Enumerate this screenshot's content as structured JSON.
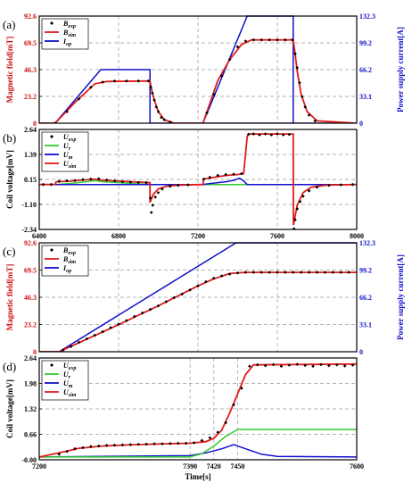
{
  "colors": {
    "exp": "#000000",
    "sim": "#e11a1a",
    "op": "#1010cc",
    "r": "#33cc33",
    "m": "#1010cc",
    "grid": "#999999"
  },
  "chart_data": [
    {
      "id": "a",
      "type": "line",
      "panel_label": "(a)",
      "ylabel": "Magnetic field[mT]",
      "ylabel_right": "Power supply current[A]",
      "xlim": [
        6400,
        8000
      ],
      "ylim": [
        0,
        92.6
      ],
      "ylim_right": [
        0,
        132.3
      ],
      "yticks": [
        "0",
        "23.2",
        "46.3",
        "69.5",
        "92.6"
      ],
      "yticks_right": [
        "0",
        "33.1",
        "66.2",
        "99.2",
        "132.3"
      ],
      "grid": true,
      "legend_position": "top-left",
      "legend": [
        {
          "main": "B",
          "sub": "exp",
          "style": "dots",
          "color": "#000000"
        },
        {
          "main": "B",
          "sub": "sim",
          "style": "line",
          "color": "#e11a1a"
        },
        {
          "main": "I",
          "sub": "op",
          "style": "line",
          "color": "#1010cc"
        }
      ],
      "series": [
        {
          "key": "op",
          "axis": "right",
          "x": [
            6400,
            6480,
            6710,
            6958,
            6958,
            8000
          ],
          "y": [
            0,
            0,
            66.2,
            66.2,
            0,
            0
          ]
        },
        {
          "key": "op",
          "axis": "right",
          "x": [
            7225,
            7225,
            7448,
            7680,
            7680
          ],
          "y": [
            0,
            0,
            132.3,
            132.3,
            0
          ]
        },
        {
          "key": "sim",
          "x": [
            6400,
            6480,
            6580,
            6680,
            6740,
            6958,
            6965,
            6980,
            7000,
            7030,
            7080,
            7225,
            7260,
            7300,
            7360,
            7420,
            7470,
            7680,
            7688,
            7700,
            7720,
            7750,
            7800,
            8000
          ],
          "y": [
            0,
            0,
            18,
            34,
            36,
            36.5,
            30,
            20,
            10,
            3,
            0,
            0,
            17,
            37,
            55,
            68,
            72,
            72,
            62,
            45,
            25,
            10,
            2,
            0
          ]
        },
        {
          "key": "exp",
          "type": "scatter",
          "x": [
            6480,
            6540,
            6600,
            6660,
            6720,
            6780,
            6840,
            6900,
            6950,
            6962,
            6970,
            6980,
            6990,
            7000,
            7015,
            7030,
            7060,
            7245,
            7280,
            7320,
            7360,
            7400,
            7440,
            7480,
            7520,
            7560,
            7600,
            7640,
            7676,
            7690,
            7700,
            7712,
            7725,
            7740,
            7760,
            7790
          ],
          "y": [
            0,
            10,
            21,
            31,
            35.5,
            36.5,
            36.5,
            36.5,
            36.5,
            31,
            26,
            20,
            14,
            10,
            5,
            3,
            1,
            9,
            25,
            41,
            55,
            66,
            71,
            72,
            72,
            72,
            72,
            72,
            72,
            60,
            48,
            35,
            23,
            14,
            7,
            2
          ]
        }
      ]
    },
    {
      "id": "b",
      "type": "line",
      "panel_label": "(b)",
      "ylabel": "Coil voltage[mV]",
      "xlim": [
        6400,
        8000
      ],
      "ylim": [
        -2.34,
        3.2
      ],
      "yticks": [
        "-2.34",
        "-1.10",
        "0.15",
        "1.39",
        "2.64"
      ],
      "xticks": [
        "6400",
        "6800",
        "7200",
        "7600",
        "8000"
      ],
      "grid": true,
      "legend_position": "top-left",
      "legend": [
        {
          "main": "U",
          "sub": "exp",
          "style": "dots",
          "color": "#000000"
        },
        {
          "main": "U",
          "sub": "r",
          "style": "line",
          "color": "#33cc33"
        },
        {
          "main": "U",
          "sub": "m",
          "style": "line",
          "color": "#1010cc"
        },
        {
          "main": "U",
          "sub": "sim",
          "style": "line",
          "color": "#e11a1a"
        }
      ],
      "series": [
        {
          "key": "r",
          "x": [
            6400,
            6480,
            6550,
            6620,
            6680,
            6720,
            6958,
            6958,
            7225,
            7225,
            7300,
            7370,
            7420,
            7448,
            7680,
            7680,
            8000
          ],
          "y": [
            0.15,
            0.15,
            0.2,
            0.28,
            0.36,
            0.3,
            0.15,
            0.15,
            0.15,
            0.15,
            0.15,
            0.15,
            0.15,
            0.15,
            0.15,
            0.15,
            0.15
          ]
        },
        {
          "key": "m",
          "x": [
            6400,
            7225,
            7260,
            7300,
            7340,
            7380,
            7410,
            7430,
            7448,
            8000
          ],
          "y": [
            0.15,
            0.15,
            0.2,
            0.25,
            0.3,
            0.38,
            0.5,
            0.35,
            0.15,
            0.15
          ]
        },
        {
          "key": "sim",
          "x": [
            6400,
            6480,
            6485,
            6550,
            6620,
            6680,
            6720,
            6958,
            6958,
            6975,
            7000,
            7040,
            7100,
            7225,
            7228,
            7280,
            7340,
            7400,
            7430,
            7448,
            7455,
            7680,
            7681,
            7700,
            7730,
            7770,
            7850,
            8000
          ],
          "y": [
            0.15,
            0.15,
            0.3,
            0.33,
            0.4,
            0.45,
            0.38,
            0.25,
            -0.85,
            -0.4,
            -0.1,
            0.05,
            0.12,
            0.15,
            0.45,
            0.55,
            0.65,
            0.7,
            0.75,
            2.8,
            2.95,
            2.95,
            -2.1,
            -1.0,
            -0.3,
            0.0,
            0.12,
            0.15
          ]
        },
        {
          "key": "exp",
          "type": "scatter",
          "x": [
            6420,
            6460,
            6500,
            6540,
            6580,
            6620,
            6660,
            6700,
            6740,
            6780,
            6820,
            6860,
            6900,
            6940,
            6960,
            6965,
            6972,
            6985,
            7000,
            7020,
            7060,
            7100,
            7150,
            7230,
            7260,
            7300,
            7340,
            7380,
            7420,
            7455,
            7480,
            7510,
            7540,
            7570,
            7600,
            7630,
            7660,
            7684,
            7690,
            7700,
            7715,
            7730,
            7760,
            7800,
            7860,
            7920,
            7980
          ],
          "y": [
            0.15,
            0.15,
            0.33,
            0.35,
            0.37,
            0.42,
            0.45,
            0.47,
            0.4,
            0.35,
            0.3,
            0.28,
            0.26,
            0.25,
            -0.6,
            -1.4,
            -1.0,
            -0.55,
            -0.3,
            -0.1,
            0.05,
            0.1,
            0.13,
            0.45,
            0.55,
            0.65,
            0.7,
            0.72,
            0.75,
            2.93,
            2.95,
            2.9,
            2.95,
            2.9,
            2.95,
            2.9,
            2.92,
            -2.3,
            -1.8,
            -1.2,
            -0.8,
            -0.5,
            -0.2,
            0.0,
            0.1,
            0.13,
            0.15
          ]
        }
      ]
    },
    {
      "id": "c",
      "type": "line",
      "panel_label": "(c)",
      "ylabel": "Magnetic field[mT]",
      "ylabel_right": "Power supply current[A]",
      "xlim": [
        7200,
        7600
      ],
      "ylim": [
        0,
        92.6
      ],
      "ylim_right": [
        0,
        132.3
      ],
      "yticks": [
        "0",
        "23.2",
        "46.3",
        "69.5",
        "92.6"
      ],
      "yticks_right": [
        "0",
        "33.1",
        "66.2",
        "99.2",
        "132.3"
      ],
      "grid": true,
      "legend_position": "top-left",
      "legend": [
        {
          "main": "B",
          "sub": "exp",
          "style": "dots",
          "color": "#000000"
        },
        {
          "main": "B",
          "sub": "sim",
          "style": "line",
          "color": "#e11a1a"
        },
        {
          "main": "I",
          "sub": "op",
          "style": "line",
          "color": "#1010cc"
        }
      ],
      "series": [
        {
          "key": "op",
          "axis": "right",
          "x": [
            7200,
            7225,
            7448,
            7600
          ],
          "y": [
            0,
            0,
            132.3,
            132.3
          ]
        },
        {
          "key": "sim",
          "x": [
            7200,
            7225,
            7300,
            7350,
            7400,
            7420,
            7440,
            7460,
            7600
          ],
          "y": [
            0,
            0,
            23,
            39,
            56,
            62,
            66.5,
            67.5,
            67.5
          ]
        },
        {
          "key": "exp",
          "type": "scatter",
          "x": [
            7230,
            7240,
            7250,
            7260,
            7270,
            7280,
            7290,
            7300,
            7310,
            7320,
            7330,
            7340,
            7350,
            7360,
            7370,
            7380,
            7390,
            7400,
            7410,
            7420,
            7430,
            7440,
            7450,
            7460,
            7470,
            7480,
            7490,
            7500,
            7510,
            7520,
            7530,
            7540,
            7550,
            7560,
            7570,
            7580,
            7590
          ],
          "y": [
            1.5,
            4.5,
            8,
            11,
            14,
            17,
            20.5,
            23.5,
            26.5,
            30,
            33,
            36,
            39,
            42.5,
            46,
            49,
            52.5,
            56,
            59.5,
            62.5,
            64.5,
            66,
            67,
            67.5,
            67.5,
            67.5,
            67.5,
            67.5,
            67.5,
            67.5,
            67.5,
            67.5,
            67.5,
            67.5,
            67.5,
            67.5,
            67.5
          ]
        }
      ]
    },
    {
      "id": "d",
      "type": "line",
      "panel_label": "(d)",
      "ylabel": "Coil voltage[mV]",
      "xlabel": "Time[s]",
      "xlim": [
        7200,
        7600
      ],
      "ylim": [
        -0.1,
        3.6
      ],
      "yticks": [
        "-0.00",
        "0.66",
        "1.32",
        "1.98",
        "2.64"
      ],
      "xticks": [
        "7200",
        "7390",
        "7420",
        "7450",
        "7600"
      ],
      "grid": true,
      "legend_position": "top-left",
      "legend": [
        {
          "main": "U",
          "sub": "exp",
          "style": "dots",
          "color": "#000000"
        },
        {
          "main": "U",
          "sub": "r",
          "style": "line",
          "color": "#33cc33"
        },
        {
          "main": "U",
          "sub": "m",
          "style": "line",
          "color": "#1010cc"
        },
        {
          "main": "U",
          "sub": "sim",
          "style": "line",
          "color": "#e11a1a"
        }
      ],
      "series": [
        {
          "key": "m",
          "x": [
            7200,
            7390,
            7410,
            7430,
            7445,
            7460,
            7480,
            7500,
            7600
          ],
          "y": [
            0,
            0.05,
            0.15,
            0.3,
            0.45,
            0.3,
            0.1,
            0.02,
            0
          ]
        },
        {
          "key": "r",
          "x": [
            7200,
            7390,
            7405,
            7420,
            7435,
            7450,
            7600
          ],
          "y": [
            0,
            0,
            0.12,
            0.4,
            0.75,
            1.0,
            1.0
          ]
        },
        {
          "key": "sim",
          "x": [
            7200,
            7225,
            7250,
            7280,
            7320,
            7360,
            7390,
            7410,
            7420,
            7430,
            7440,
            7450,
            7460,
            7470,
            7600
          ],
          "y": [
            0,
            0.15,
            0.32,
            0.4,
            0.45,
            0.48,
            0.5,
            0.56,
            0.68,
            0.98,
            1.6,
            2.3,
            3.0,
            3.35,
            3.38
          ]
        },
        {
          "key": "exp",
          "type": "scatter",
          "x": [
            7225,
            7235,
            7245,
            7255,
            7265,
            7275,
            7285,
            7295,
            7305,
            7315,
            7325,
            7335,
            7345,
            7355,
            7365,
            7375,
            7385,
            7395,
            7405,
            7415,
            7425,
            7435,
            7445,
            7455,
            7465,
            7475,
            7485,
            7495,
            7505,
            7515,
            7525,
            7535,
            7545,
            7555,
            7565,
            7575,
            7585,
            7595
          ],
          "y": [
            0.1,
            0.2,
            0.3,
            0.34,
            0.38,
            0.4,
            0.42,
            0.43,
            0.44,
            0.45,
            0.46,
            0.47,
            0.48,
            0.48,
            0.49,
            0.5,
            0.5,
            0.52,
            0.6,
            0.7,
            0.9,
            1.25,
            1.9,
            2.5,
            3.3,
            3.35,
            3.32,
            3.36,
            3.3,
            3.34,
            3.37,
            3.33,
            3.3,
            3.36,
            3.32,
            3.35,
            3.31,
            3.34
          ]
        }
      ]
    }
  ]
}
